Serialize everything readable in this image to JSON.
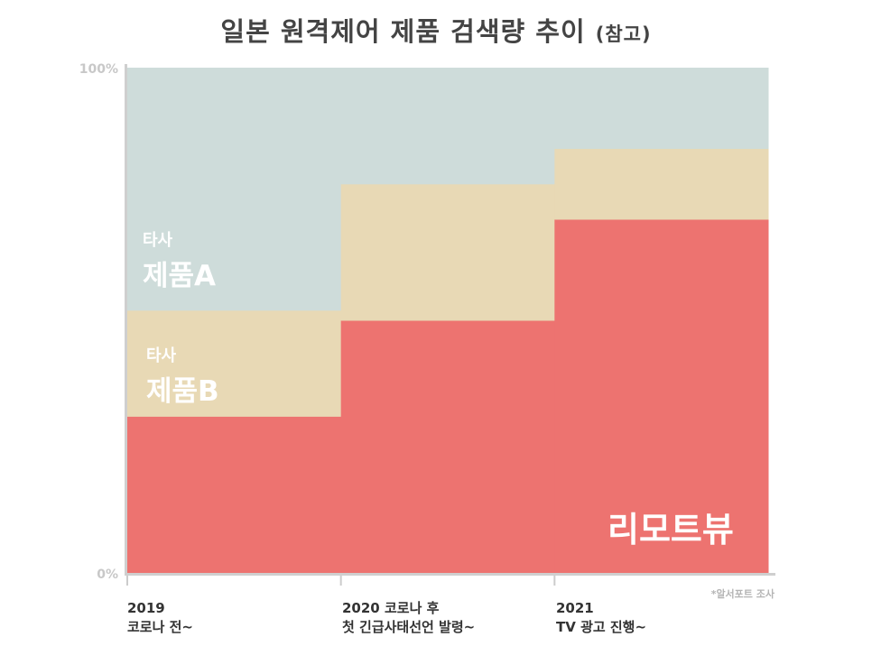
{
  "title": {
    "main": "일본 원격제어 제품 검색량 추이",
    "sub": "(참고)"
  },
  "source_note": "*알서포트 조사",
  "segments": {
    "ours": "리모트뷰",
    "competitor_a": {
      "prefix": "타사",
      "name": "제품A"
    },
    "competitor_b": {
      "prefix": "타사",
      "name": "제품B"
    }
  },
  "x_labels": [
    {
      "line1": "2019",
      "line2": "코로나 전~"
    },
    {
      "line1": "2020 코로나 후",
      "line2": "첫 긴급사태선언 발령~"
    },
    {
      "line1": "2021",
      "line2": "TV 광고 진행~"
    }
  ],
  "colors": {
    "ours": "#ed7370",
    "competitor_b": "#e8d9b5",
    "competitor_a": "#cedcda"
  },
  "chart_data": {
    "type": "area",
    "stacked": true,
    "normalized": true,
    "title": "일본 원격제어 제품 검색량 추이 (참고)",
    "categories": [
      "2019 코로나 전~",
      "2020 코로나 후 첫 긴급사태선언 발령~",
      "2021 TV 광고 진행~"
    ],
    "y_ticks": [
      "100%",
      "0%"
    ],
    "ylim": [
      0,
      100
    ],
    "step": true,
    "series": [
      {
        "name": "리모트뷰",
        "values": [
          31,
          50,
          70
        ]
      },
      {
        "name": "타사 제품B",
        "values": [
          21,
          27,
          14
        ]
      },
      {
        "name": "타사 제품A",
        "values": [
          48,
          23,
          16
        ]
      }
    ],
    "grid": false,
    "legend": "none (labels inside areas)"
  }
}
